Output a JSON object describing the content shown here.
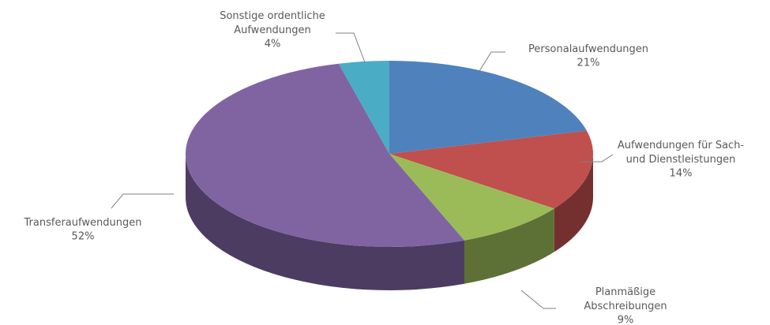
{
  "chart_data": {
    "type": "pie",
    "categories": [
      "Personalaufwendungen",
      "Aufwendungen für Sach- und Dienstleistungen",
      "Planmäßige Abschreibungen",
      "Transferaufwendungen",
      "Sonstige ordentliche Aufwendungen"
    ],
    "values": [
      21,
      14,
      9,
      52,
      4
    ],
    "value_labels": [
      "21%",
      "14%",
      "9%",
      "52%",
      "4%"
    ],
    "colors": [
      "#4f81bd",
      "#c0504d",
      "#9bbb59",
      "#8064a2",
      "#4bacc6"
    ]
  }
}
